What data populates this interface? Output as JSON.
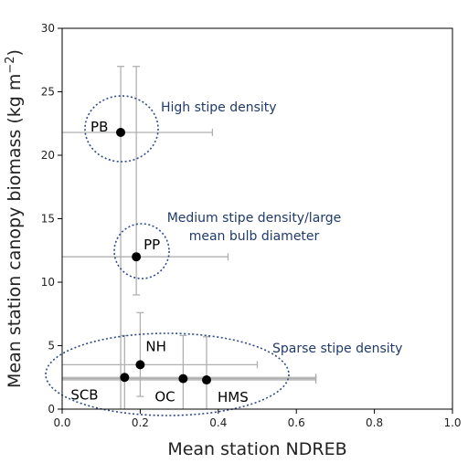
{
  "chart_data": {
    "type": "scatter",
    "xlabel": "Mean station NDREB",
    "ylabel": "Mean station canopy biomass (kg m",
    "ylabel_sup": "−2",
    "ylabel_close": ")",
    "xlim": [
      0.0,
      1.0
    ],
    "ylim": [
      0,
      30
    ],
    "x_ticks": [
      "0.0",
      "0.2",
      "0.4",
      "0.6",
      "0.8",
      "1.0"
    ],
    "y_ticks": [
      "0",
      "5",
      "10",
      "15",
      "20",
      "25",
      "30"
    ],
    "grid": false,
    "colors": {
      "point": "#000000",
      "errorbar": "#b0b0b0",
      "group_outline": "#2f4a8a",
      "group_text": "#1f3a6b"
    },
    "points": [
      {
        "label": "PB",
        "x": 0.15,
        "y": 21.8,
        "x_err": [
          0.0,
          0.385
        ],
        "y_err": [
          0.0,
          27.0
        ]
      },
      {
        "label": "PP",
        "x": 0.19,
        "y": 12.0,
        "x_err": [
          0.0,
          0.425
        ],
        "y_err": [
          9.0,
          27.0
        ]
      },
      {
        "label": "NH",
        "x": 0.2,
        "y": 3.5,
        "x_err": [
          0.0,
          0.5
        ],
        "y_err": [
          1.0,
          7.6
        ]
      },
      {
        "label": "SCB",
        "x": 0.16,
        "y": 2.5,
        "x_err": [
          0.0,
          0.65
        ],
        "y_err": [
          0.0,
          5.8
        ]
      },
      {
        "label": "OC",
        "x": 0.31,
        "y": 2.4,
        "x_err": [
          0.0,
          0.65
        ],
        "y_err": [
          0.0,
          5.8
        ]
      },
      {
        "label": "HMS",
        "x": 0.37,
        "y": 2.3,
        "x_err": [
          0.0,
          0.65
        ],
        "y_err": [
          0.0,
          5.7
        ]
      }
    ],
    "groups": [
      {
        "label_lines": [
          "High stipe density"
        ]
      },
      {
        "label_lines": [
          "Medium stipe density/large",
          "mean bulb diameter"
        ]
      },
      {
        "label_lines": [
          "Sparse stipe density"
        ]
      }
    ]
  }
}
